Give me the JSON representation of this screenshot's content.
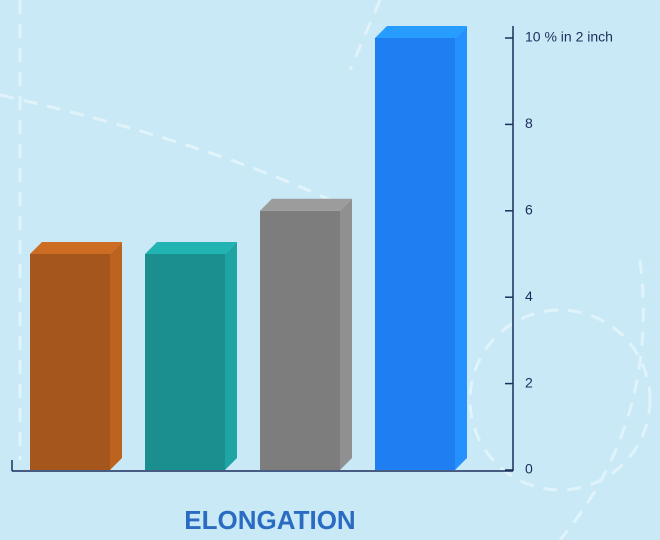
{
  "chart_data": {
    "type": "bar3d",
    "title": "ELONGATION",
    "categories": [
      null,
      null,
      null,
      null
    ],
    "values": [
      5,
      5,
      6,
      10
    ],
    "colors": [
      "#a4561c",
      "#1b8f8f",
      "#7d7d7d",
      "#1f7ef2"
    ],
    "ylim": [
      0,
      10
    ],
    "yticks": [
      0,
      2,
      4,
      6,
      8,
      {
        "value": 10,
        "label": "10 % in 2 inch"
      }
    ]
  }
}
